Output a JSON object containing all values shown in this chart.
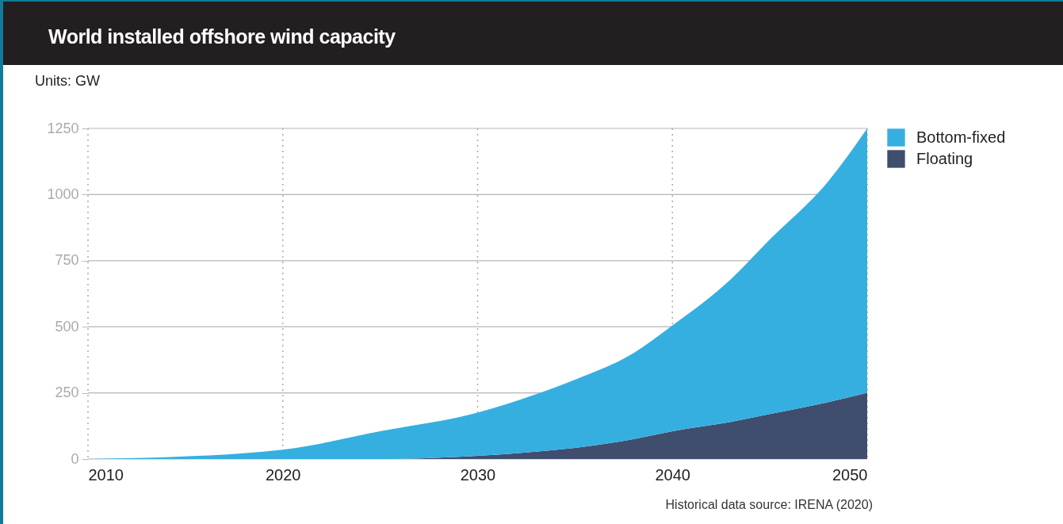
{
  "chart_data": {
    "type": "area",
    "title": "World installed offshore wind capacity",
    "ylabel": "Units: GW",
    "annotations": [
      "Historical data source: IRENA (2020)"
    ],
    "stacked": true,
    "grid": true,
    "legend": "top right",
    "xlim": [
      2010,
      2050
    ],
    "xticks": [
      2010,
      2020,
      2030,
      2040,
      2050
    ],
    "ylim": [
      0,
      1250
    ],
    "yticks": [
      0,
      250,
      500,
      750,
      {
        "value": 1000,
        "label": "1000"
      },
      {
        "value": 1250,
        "label": "1250"
      }
    ],
    "x": [
      2010,
      2012,
      2014,
      2016,
      2018,
      2020,
      2025,
      2030,
      2033,
      2035,
      2038,
      2040,
      2043,
      2045,
      2048,
      2050
    ],
    "series": [
      {
        "name": "Floating",
        "color": "#3f4e6e",
        "values": [
          0,
          0,
          0,
          0,
          0,
          0,
          0,
          12,
          28,
          42,
          75,
          105,
          140,
          170,
          215,
          250
        ]
      },
      {
        "name": "Bottom-fixed",
        "color": "#35afe0",
        "values": [
          0,
          3,
          7,
          13,
          22,
          35,
          105,
          163,
          217,
          258,
          325,
          400,
          540,
          660,
          835,
          1000
        ]
      }
    ]
  }
}
